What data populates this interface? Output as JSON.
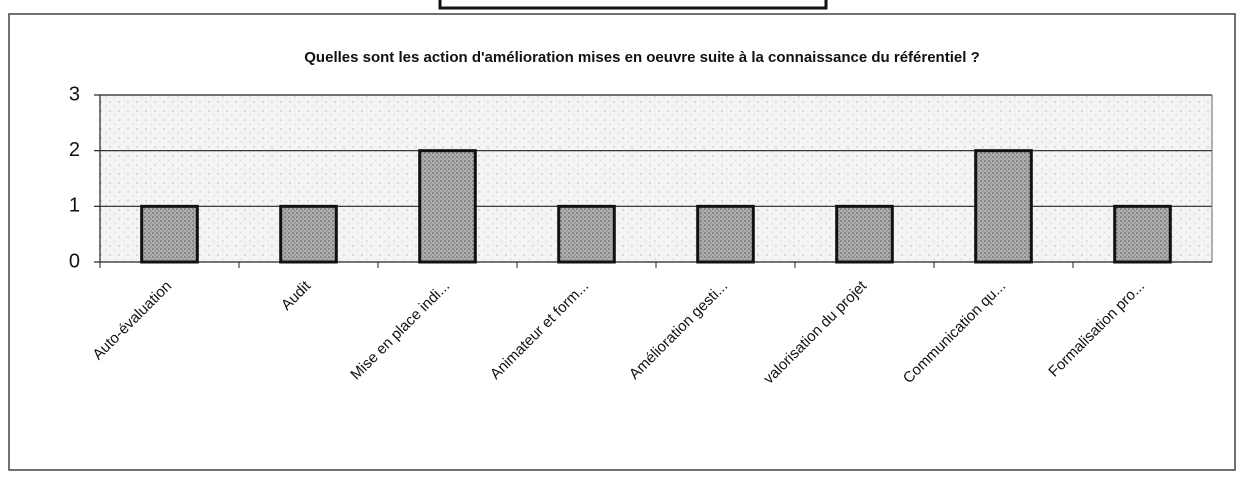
{
  "chart_data": {
    "type": "bar",
    "title": "Quelles sont les action d'amélioration mises en oeuvre suite à la connaissance du référentiel ?",
    "categories": [
      "Auto-évaluation",
      "Audit",
      "Mise en place indi...",
      "Animateur et form...",
      "Amélioration gesti...",
      "valorisation du projet",
      "Communication qu...",
      "Formalisation pro..."
    ],
    "values": [
      1,
      1,
      2,
      1,
      1,
      1,
      2,
      1
    ],
    "color": "#9a9a9a",
    "ylim": [
      0,
      3
    ],
    "yticks": [
      0,
      1,
      2,
      3
    ],
    "grid": true
  }
}
